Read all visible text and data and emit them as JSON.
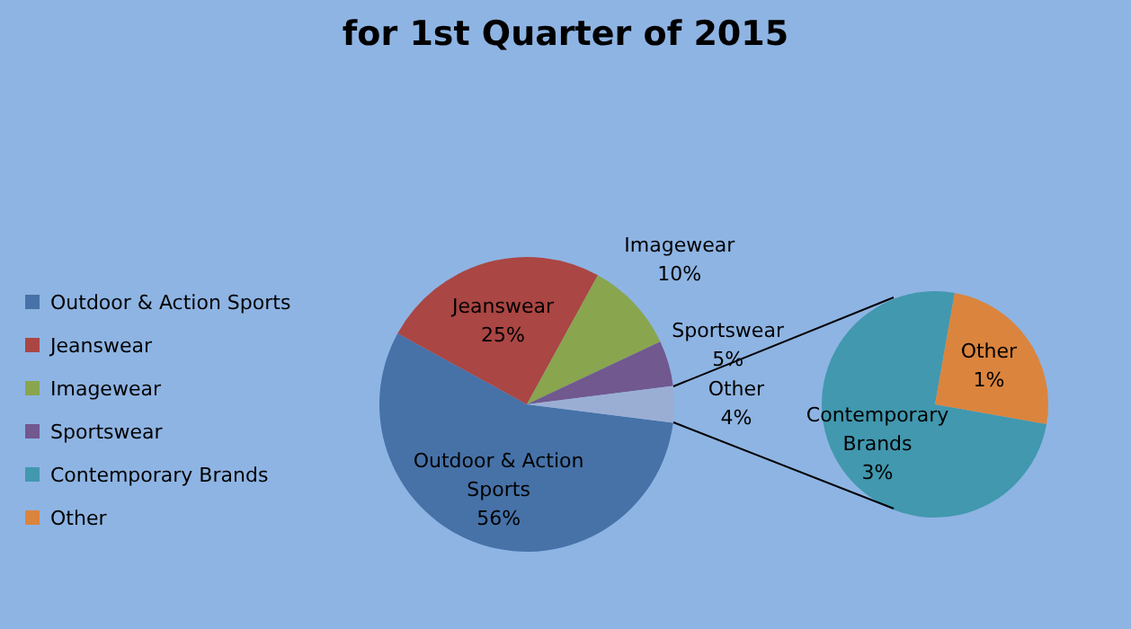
{
  "chart_data": [
    {
      "type": "pie",
      "title": "for 1st Quarter of 2015",
      "categories": [
        "Outdoor & Action Sports",
        "Jeanswear",
        "Imagewear",
        "Sportswear",
        "Other"
      ],
      "values": [
        56,
        25,
        10,
        5,
        4
      ],
      "value_labels": [
        "56%",
        "25%",
        "10%",
        "5%",
        "4%"
      ],
      "colors": [
        "#4672a8",
        "#aa4643",
        "#89a54e",
        "#71588f",
        "#9aaed4"
      ],
      "legend": "left"
    },
    {
      "type": "pie",
      "categories": [
        "Contemporary Brands",
        "Other"
      ],
      "values": [
        3,
        1
      ],
      "value_labels": [
        "3%",
        "1%"
      ],
      "colors": [
        "#4198af",
        "#db843d"
      ],
      "legend": "left"
    }
  ]
}
